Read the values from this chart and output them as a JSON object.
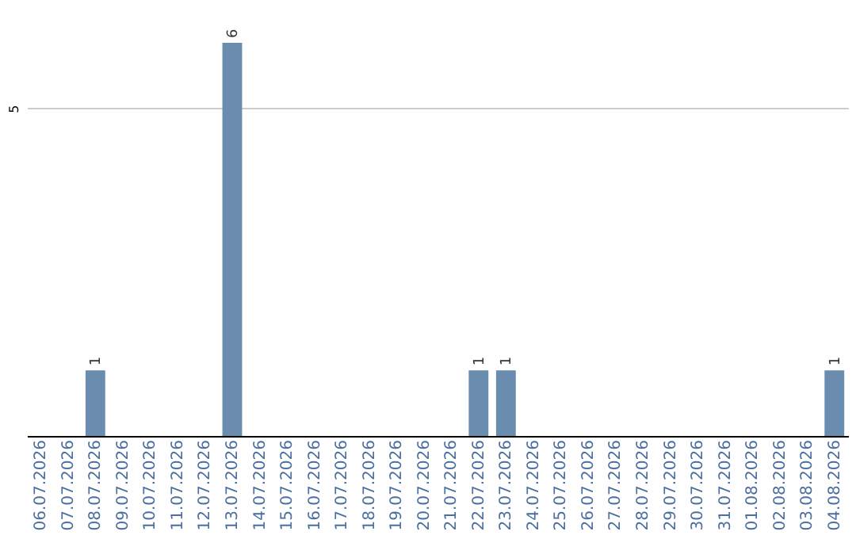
{
  "chart_data": {
    "type": "bar",
    "categories": [
      "06.07.2026",
      "07.07.2026",
      "08.07.2026",
      "09.07.2026",
      "10.07.2026",
      "11.07.2026",
      "12.07.2026",
      "13.07.2026",
      "14.07.2026",
      "15.07.2026",
      "16.07.2026",
      "17.07.2026",
      "18.07.2026",
      "19.07.2026",
      "20.07.2026",
      "21.07.2026",
      "22.07.2026",
      "23.07.2026",
      "24.07.2026",
      "25.07.2026",
      "26.07.2026",
      "27.07.2026",
      "28.07.2026",
      "29.07.2026",
      "30.07.2026",
      "31.07.2026",
      "01.08.2026",
      "02.08.2026",
      "03.08.2026",
      "04.08.2026"
    ],
    "values": [
      0,
      0,
      1,
      0,
      0,
      0,
      0,
      6,
      0,
      0,
      0,
      0,
      0,
      0,
      0,
      0,
      1,
      1,
      0,
      0,
      0,
      0,
      0,
      0,
      0,
      0,
      0,
      0,
      0,
      1
    ],
    "value_labels": [
      null,
      null,
      "1",
      null,
      null,
      null,
      null,
      "6",
      null,
      null,
      null,
      null,
      null,
      null,
      null,
      null,
      "1",
      "1",
      null,
      null,
      null,
      null,
      null,
      null,
      null,
      null,
      null,
      null,
      null,
      "1"
    ],
    "color": "#6a8caf",
    "ylim": [
      0,
      6
    ],
    "yticks": [
      5
    ],
    "grid": "y"
  }
}
